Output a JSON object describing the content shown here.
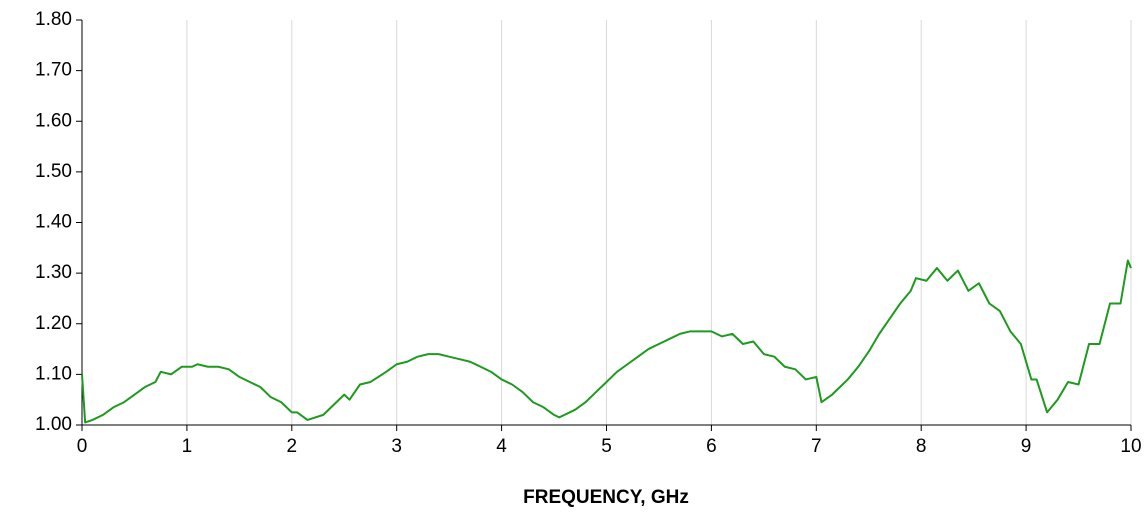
{
  "chart_data": {
    "type": "line",
    "x_label": "FREQUENCY, GHz",
    "xlim": [
      0,
      10
    ],
    "xticks": [
      0,
      1,
      2,
      3,
      4,
      5,
      6,
      7,
      8,
      9,
      10
    ],
    "ylim": [
      1.0,
      1.8
    ],
    "yticks": [
      {
        "value": 1.0,
        "label": "1.00"
      },
      {
        "value": 1.1,
        "label": "1.10"
      },
      {
        "value": 1.2,
        "label": "1.20"
      },
      {
        "value": 1.3,
        "label": "1.30"
      },
      {
        "value": 1.4,
        "label": "1.40"
      },
      {
        "value": 1.5,
        "label": "1.50"
      },
      {
        "value": 1.6,
        "label": "1.60"
      },
      {
        "value": 1.7,
        "label": "1.70"
      },
      {
        "value": 1.8,
        "label": "1.80"
      }
    ],
    "grid": "x",
    "series": [
      {
        "color": "#1e9a1e",
        "x": [
          0,
          0.03,
          0.1,
          0.2,
          0.3,
          0.4,
          0.5,
          0.6,
          0.7,
          0.75,
          0.85,
          0.95,
          1.05,
          1.1,
          1.2,
          1.3,
          1.4,
          1.5,
          1.6,
          1.7,
          1.8,
          1.9,
          2.0,
          2.05,
          2.15,
          2.3,
          2.4,
          2.5,
          2.55,
          2.65,
          2.75,
          2.9,
          3.0,
          3.1,
          3.2,
          3.3,
          3.4,
          3.5,
          3.6,
          3.7,
          3.8,
          3.9,
          4.0,
          4.1,
          4.2,
          4.3,
          4.4,
          4.5,
          4.55,
          4.7,
          4.8,
          4.9,
          5.0,
          5.1,
          5.2,
          5.3,
          5.4,
          5.5,
          5.6,
          5.7,
          5.8,
          5.9,
          6.0,
          6.1,
          6.2,
          6.3,
          6.4,
          6.5,
          6.6,
          6.7,
          6.8,
          6.9,
          7.0,
          7.05,
          7.15,
          7.3,
          7.4,
          7.5,
          7.6,
          7.7,
          7.8,
          7.9,
          7.95,
          8.05,
          8.15,
          8.25,
          8.35,
          8.45,
          8.55,
          8.65,
          8.75,
          8.85,
          8.95,
          9.05,
          9.1,
          9.2,
          9.3,
          9.4,
          9.5,
          9.6,
          9.7,
          9.8,
          9.9,
          9.97,
          10.0
        ],
        "values": [
          1.1,
          1.005,
          1.01,
          1.02,
          1.035,
          1.045,
          1.06,
          1.075,
          1.085,
          1.105,
          1.1,
          1.115,
          1.115,
          1.12,
          1.115,
          1.115,
          1.11,
          1.095,
          1.085,
          1.075,
          1.055,
          1.045,
          1.025,
          1.025,
          1.01,
          1.02,
          1.04,
          1.06,
          1.05,
          1.08,
          1.085,
          1.105,
          1.12,
          1.125,
          1.135,
          1.14,
          1.14,
          1.135,
          1.13,
          1.125,
          1.115,
          1.105,
          1.09,
          1.08,
          1.065,
          1.045,
          1.035,
          1.02,
          1.015,
          1.03,
          1.045,
          1.065,
          1.085,
          1.105,
          1.12,
          1.135,
          1.15,
          1.16,
          1.17,
          1.18,
          1.185,
          1.185,
          1.185,
          1.175,
          1.18,
          1.16,
          1.165,
          1.14,
          1.135,
          1.115,
          1.11,
          1.09,
          1.095,
          1.045,
          1.06,
          1.09,
          1.115,
          1.145,
          1.18,
          1.21,
          1.24,
          1.265,
          1.29,
          1.285,
          1.31,
          1.285,
          1.305,
          1.265,
          1.28,
          1.24,
          1.225,
          1.185,
          1.16,
          1.09,
          1.09,
          1.025,
          1.05,
          1.085,
          1.08,
          1.16,
          1.16,
          1.24,
          1.24,
          1.325,
          1.31
        ]
      }
    ]
  }
}
